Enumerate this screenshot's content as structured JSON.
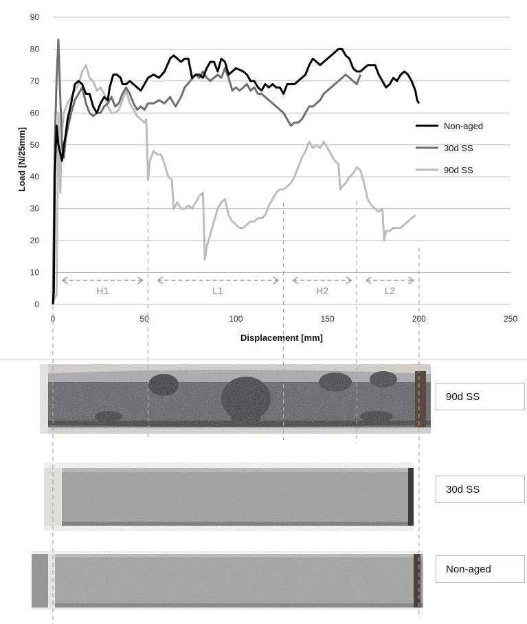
{
  "chart_data": {
    "type": "line",
    "xlabel": "Displacement [mm]",
    "ylabel": "Load [N/25mm]",
    "xlim": [
      0,
      250
    ],
    "ylim": [
      0,
      90
    ],
    "xticks": [
      0,
      50,
      100,
      150,
      200,
      250
    ],
    "yticks": [
      0,
      10,
      20,
      30,
      40,
      50,
      60,
      70,
      80,
      90
    ],
    "grid": "horizontal",
    "legend_position": "right",
    "series": [
      {
        "name": "Non-aged",
        "color": "#000000",
        "points": [
          [
            0,
            0
          ],
          [
            0.5,
            4
          ],
          [
            1,
            40
          ],
          [
            2,
            56
          ],
          [
            3,
            50
          ],
          [
            5,
            45
          ],
          [
            6,
            50
          ],
          [
            7,
            53
          ],
          [
            8,
            58
          ],
          [
            10,
            63
          ],
          [
            12,
            69
          ],
          [
            14,
            70
          ],
          [
            16,
            69
          ],
          [
            18,
            66
          ],
          [
            20,
            66
          ],
          [
            22,
            62
          ],
          [
            24,
            60
          ],
          [
            26,
            63
          ],
          [
            28,
            65
          ],
          [
            30,
            64
          ],
          [
            31,
            68
          ],
          [
            33,
            72
          ],
          [
            35,
            72
          ],
          [
            37,
            71
          ],
          [
            38,
            69
          ],
          [
            40,
            69
          ],
          [
            42,
            70
          ],
          [
            44,
            69
          ],
          [
            46,
            68
          ],
          [
            48,
            67
          ],
          [
            50,
            69
          ],
          [
            52,
            71
          ],
          [
            55,
            72
          ],
          [
            58,
            71
          ],
          [
            61,
            73
          ],
          [
            64,
            77
          ],
          [
            66,
            78
          ],
          [
            68,
            77
          ],
          [
            70,
            76
          ],
          [
            72,
            77
          ],
          [
            74,
            77
          ],
          [
            76,
            71
          ],
          [
            78,
            72
          ],
          [
            80,
            72
          ],
          [
            82,
            71
          ],
          [
            84,
            74
          ],
          [
            86,
            76
          ],
          [
            88,
            76
          ],
          [
            90,
            73
          ],
          [
            92,
            77
          ],
          [
            94,
            76
          ],
          [
            96,
            72
          ],
          [
            98,
            73
          ],
          [
            100,
            74
          ],
          [
            104,
            73
          ],
          [
            106,
            72
          ],
          [
            108,
            70
          ],
          [
            110,
            70
          ],
          [
            112,
            68
          ],
          [
            114,
            67
          ],
          [
            116,
            69
          ],
          [
            118,
            68
          ],
          [
            120,
            69
          ],
          [
            122,
            68
          ],
          [
            124,
            68
          ],
          [
            126,
            66
          ],
          [
            128,
            69
          ],
          [
            130,
            69
          ],
          [
            132,
            69
          ],
          [
            134,
            70
          ],
          [
            136,
            71
          ],
          [
            138,
            72
          ],
          [
            140,
            75
          ],
          [
            142,
            77
          ],
          [
            144,
            76
          ],
          [
            146,
            75
          ],
          [
            148,
            76
          ],
          [
            150,
            77
          ],
          [
            152,
            78
          ],
          [
            154,
            79
          ],
          [
            156,
            80
          ],
          [
            158,
            80
          ],
          [
            160,
            78
          ],
          [
            162,
            77
          ],
          [
            164,
            74
          ],
          [
            166,
            73
          ],
          [
            168,
            73
          ],
          [
            170,
            74
          ],
          [
            172,
            75
          ],
          [
            174,
            75
          ],
          [
            176,
            75
          ],
          [
            178,
            72
          ],
          [
            180,
            70
          ],
          [
            182,
            68
          ],
          [
            184,
            69
          ],
          [
            186,
            71
          ],
          [
            188,
            70
          ],
          [
            190,
            72
          ],
          [
            192,
            73
          ],
          [
            194,
            72
          ],
          [
            196,
            70
          ],
          [
            198,
            67
          ],
          [
            199,
            64
          ],
          [
            200,
            63
          ]
        ]
      },
      {
        "name": "30d SS",
        "color": "#6f6f6f",
        "points": [
          [
            0,
            0
          ],
          [
            1,
            50
          ],
          [
            2,
            70
          ],
          [
            3,
            83
          ],
          [
            4,
            65
          ],
          [
            5,
            50
          ],
          [
            6,
            46
          ],
          [
            7,
            52
          ],
          [
            8,
            55
          ],
          [
            10,
            60
          ],
          [
            12,
            64
          ],
          [
            14,
            66
          ],
          [
            16,
            68
          ],
          [
            18,
            63
          ],
          [
            20,
            60
          ],
          [
            22,
            59
          ],
          [
            24,
            60
          ],
          [
            26,
            60
          ],
          [
            28,
            62
          ],
          [
            30,
            63
          ],
          [
            32,
            65
          ],
          [
            34,
            62
          ],
          [
            36,
            63
          ],
          [
            38,
            66
          ],
          [
            40,
            68
          ],
          [
            42,
            66
          ],
          [
            44,
            63
          ],
          [
            46,
            61
          ],
          [
            48,
            62
          ],
          [
            50,
            61
          ],
          [
            52,
            63
          ],
          [
            55,
            63
          ],
          [
            58,
            64
          ],
          [
            61,
            63
          ],
          [
            64,
            65
          ],
          [
            67,
            62
          ],
          [
            70,
            65
          ],
          [
            72,
            68
          ],
          [
            75,
            70
          ],
          [
            78,
            72
          ],
          [
            80,
            71
          ],
          [
            82,
            73
          ],
          [
            84,
            71
          ],
          [
            86,
            70
          ],
          [
            88,
            71
          ],
          [
            90,
            72
          ],
          [
            92,
            71
          ],
          [
            94,
            74
          ],
          [
            96,
            71
          ],
          [
            98,
            67
          ],
          [
            100,
            68
          ],
          [
            102,
            67
          ],
          [
            104,
            68
          ],
          [
            106,
            69
          ],
          [
            108,
            67
          ],
          [
            110,
            68
          ],
          [
            112,
            66
          ],
          [
            114,
            66
          ],
          [
            116,
            65
          ],
          [
            118,
            64
          ],
          [
            120,
            63
          ],
          [
            122,
            62
          ],
          [
            124,
            61
          ],
          [
            126,
            60
          ],
          [
            128,
            58
          ],
          [
            130,
            56
          ],
          [
            132,
            57
          ],
          [
            134,
            57
          ],
          [
            136,
            58
          ],
          [
            138,
            60
          ],
          [
            140,
            62
          ],
          [
            142,
            62
          ],
          [
            144,
            63
          ],
          [
            146,
            64
          ],
          [
            148,
            66
          ],
          [
            150,
            67
          ],
          [
            152,
            68
          ],
          [
            154,
            69
          ],
          [
            156,
            70
          ],
          [
            158,
            71
          ],
          [
            160,
            72
          ],
          [
            162,
            71
          ],
          [
            164,
            70
          ],
          [
            166,
            69
          ],
          [
            168,
            72
          ]
        ]
      },
      {
        "name": "90d SS",
        "color": "#bdbdbd",
        "points": [
          [
            0,
            0
          ],
          [
            1,
            2
          ],
          [
            2,
            3
          ],
          [
            3,
            60
          ],
          [
            4,
            35
          ],
          [
            5,
            55
          ],
          [
            6,
            60
          ],
          [
            8,
            63
          ],
          [
            10,
            65
          ],
          [
            12,
            67
          ],
          [
            14,
            69
          ],
          [
            16,
            73
          ],
          [
            18,
            75
          ],
          [
            20,
            71
          ],
          [
            22,
            70
          ],
          [
            24,
            67
          ],
          [
            26,
            68
          ],
          [
            28,
            66
          ],
          [
            30,
            62
          ],
          [
            32,
            60
          ],
          [
            34,
            60
          ],
          [
            36,
            61
          ],
          [
            38,
            64
          ],
          [
            40,
            67
          ],
          [
            42,
            63
          ],
          [
            44,
            61
          ],
          [
            46,
            59
          ],
          [
            48,
            58
          ],
          [
            50,
            57
          ],
          [
            51,
            58
          ],
          [
            52,
            39
          ],
          [
            53,
            45
          ],
          [
            55,
            48
          ],
          [
            57,
            47
          ],
          [
            59,
            47
          ],
          [
            61,
            44
          ],
          [
            63,
            40
          ],
          [
            65,
            39
          ],
          [
            66,
            30
          ],
          [
            68,
            32
          ],
          [
            70,
            30
          ],
          [
            72,
            30
          ],
          [
            74,
            31
          ],
          [
            76,
            30
          ],
          [
            78,
            32
          ],
          [
            80,
            34
          ],
          [
            82,
            35
          ],
          [
            83,
            14
          ],
          [
            84,
            18
          ],
          [
            86,
            22
          ],
          [
            88,
            26
          ],
          [
            90,
            30
          ],
          [
            92,
            32
          ],
          [
            94,
            33
          ],
          [
            96,
            28
          ],
          [
            98,
            26
          ],
          [
            100,
            25
          ],
          [
            102,
            24
          ],
          [
            104,
            24
          ],
          [
            106,
            25
          ],
          [
            108,
            26
          ],
          [
            110,
            26
          ],
          [
            112,
            27
          ],
          [
            114,
            27
          ],
          [
            116,
            28
          ],
          [
            118,
            31
          ],
          [
            120,
            33
          ],
          [
            122,
            35
          ],
          [
            124,
            36
          ],
          [
            126,
            36
          ],
          [
            128,
            37
          ],
          [
            130,
            38
          ],
          [
            132,
            40
          ],
          [
            134,
            43
          ],
          [
            136,
            46
          ],
          [
            138,
            48
          ],
          [
            140,
            51
          ],
          [
            142,
            49
          ],
          [
            144,
            50
          ],
          [
            146,
            49
          ],
          [
            148,
            51
          ],
          [
            150,
            49
          ],
          [
            152,
            47
          ],
          [
            154,
            45
          ],
          [
            156,
            44
          ],
          [
            157,
            36
          ],
          [
            158,
            37
          ],
          [
            160,
            38
          ],
          [
            162,
            40
          ],
          [
            164,
            41
          ],
          [
            166,
            43
          ],
          [
            168,
            42
          ],
          [
            170,
            38
          ],
          [
            172,
            33
          ],
          [
            174,
            31
          ],
          [
            176,
            30
          ],
          [
            178,
            29
          ],
          [
            180,
            30
          ],
          [
            181,
            20
          ],
          [
            182,
            23
          ],
          [
            184,
            23
          ],
          [
            186,
            24
          ],
          [
            188,
            24
          ],
          [
            190,
            24
          ],
          [
            192,
            25
          ],
          [
            194,
            26
          ],
          [
            196,
            27
          ],
          [
            198,
            28
          ]
        ]
      }
    ],
    "regions": [
      {
        "label": "H1",
        "from": 0,
        "to": 52
      },
      {
        "label": "L1",
        "from": 52,
        "to": 126
      },
      {
        "label": "H2",
        "from": 126,
        "to": 166
      },
      {
        "label": "L2",
        "from": 166,
        "to": 200
      }
    ]
  },
  "specimens": [
    {
      "label": "90d SS"
    },
    {
      "label": "30d SS"
    },
    {
      "label": "Non-aged"
    }
  ]
}
